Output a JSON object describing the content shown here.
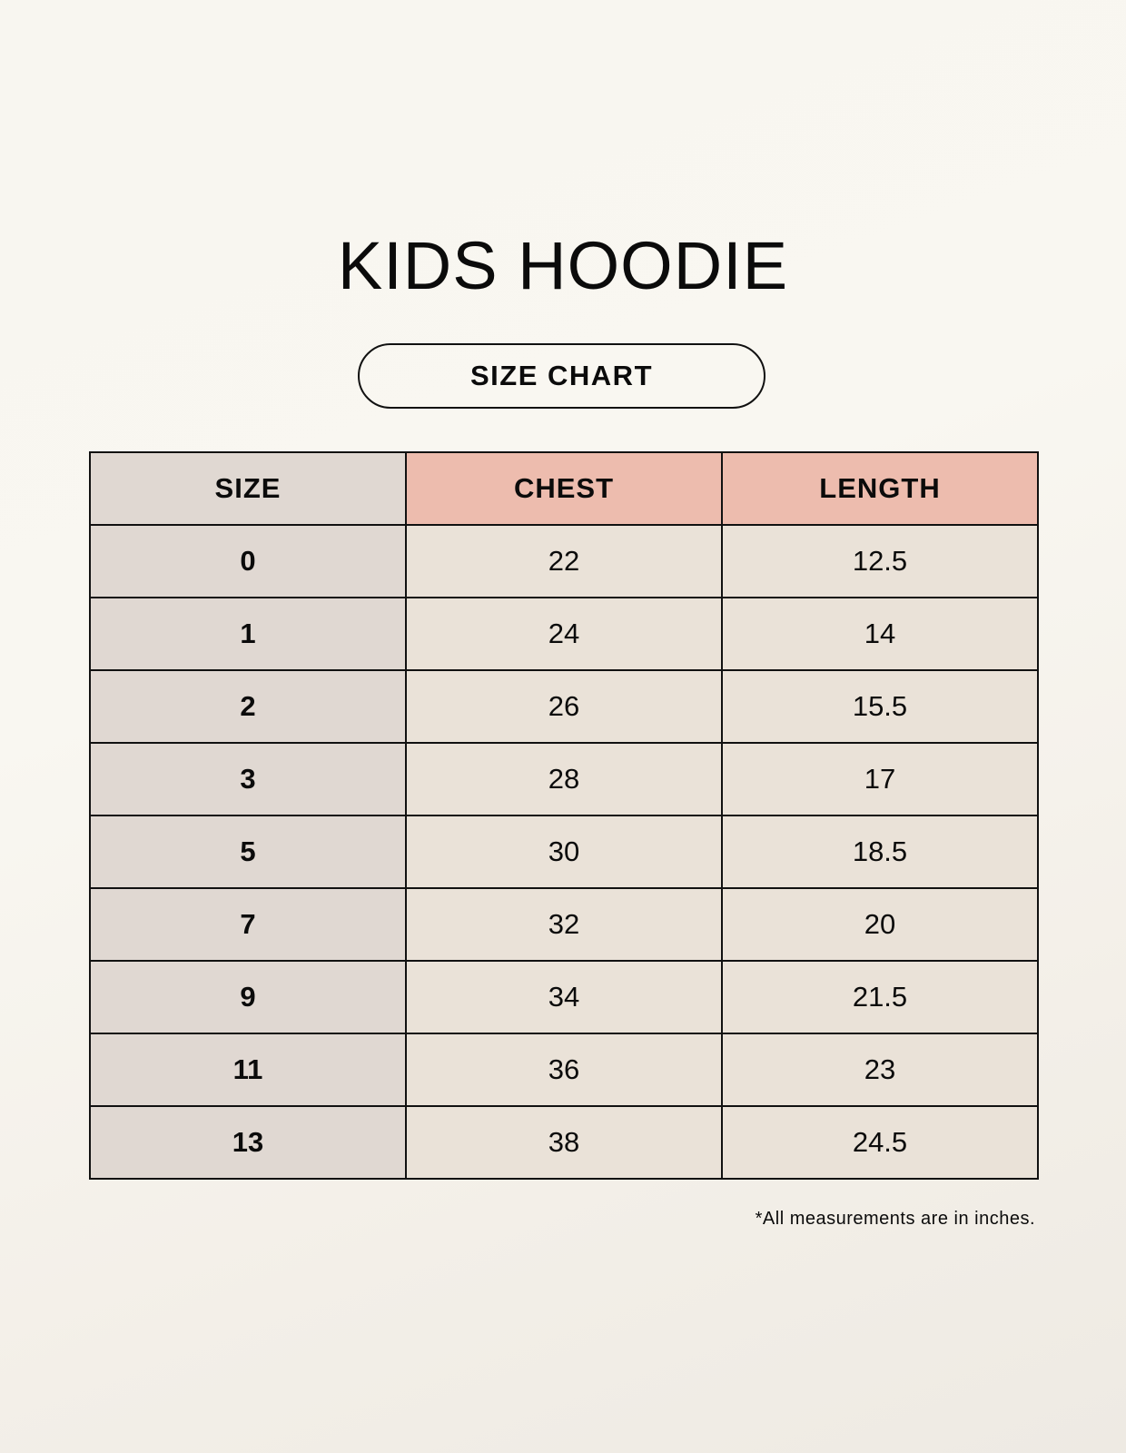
{
  "title": "KIDS HOODIE",
  "subtitle": "SIZE CHART",
  "colors": {
    "size_column": "#e0d8d2",
    "header_accent": "#edbcae",
    "cell": "#eae2d8"
  },
  "table": {
    "headers": [
      "SIZE",
      "CHEST",
      "LENGTH"
    ],
    "rows": [
      [
        "0",
        "22",
        "12.5"
      ],
      [
        "1",
        "24",
        "14"
      ],
      [
        "2",
        "26",
        "15.5"
      ],
      [
        "3",
        "28",
        "17"
      ],
      [
        "5",
        "30",
        "18.5"
      ],
      [
        "7",
        "32",
        "20"
      ],
      [
        "9",
        "34",
        "21.5"
      ],
      [
        "11",
        "36",
        "23"
      ],
      [
        "13",
        "38",
        "24.5"
      ]
    ]
  },
  "footnote": "*All measurements are in inches."
}
